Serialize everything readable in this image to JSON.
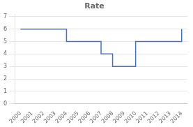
{
  "chart_data": {
    "type": "line",
    "title": "Rate",
    "x": [
      2000,
      2001,
      2002,
      2003,
      2004,
      2005,
      2006,
      2007,
      2008,
      2009,
      2010,
      2011,
      2012,
      2013,
      2014
    ],
    "values": [
      6,
      6,
      6,
      6,
      5,
      5,
      5,
      4,
      3,
      3,
      5,
      5,
      5,
      5,
      6
    ],
    "line_style": "step",
    "color": "#4472C4",
    "xlim": [
      1999.5,
      2014.5
    ],
    "xticks": [
      2000,
      2001,
      2002,
      2003,
      2004,
      2005,
      2006,
      2007,
      2008,
      2009,
      2010,
      2011,
      2012,
      2013,
      2014
    ],
    "ylim": [
      0,
      7.2
    ],
    "yticks": [
      0,
      1,
      2,
      3,
      4,
      5,
      6,
      7
    ],
    "grid": "y"
  }
}
